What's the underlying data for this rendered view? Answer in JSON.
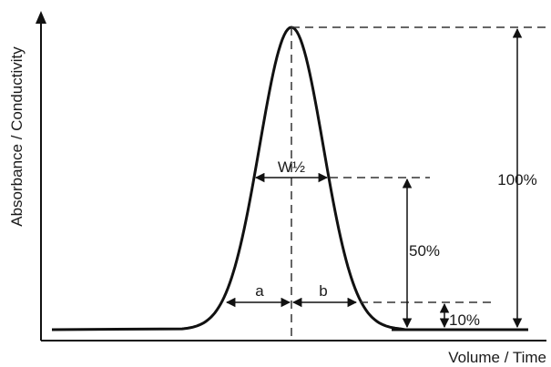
{
  "axes": {
    "y_label": "Absorbance / Conductivity",
    "x_label": "Volume / Time"
  },
  "annotations": {
    "half_width": "W½",
    "left_half": "a",
    "right_half": "b",
    "pct_100": "100%",
    "pct_50": "50%",
    "pct_10": "10%"
  },
  "colors": {
    "line": "#111111",
    "dash": "#333333"
  }
}
